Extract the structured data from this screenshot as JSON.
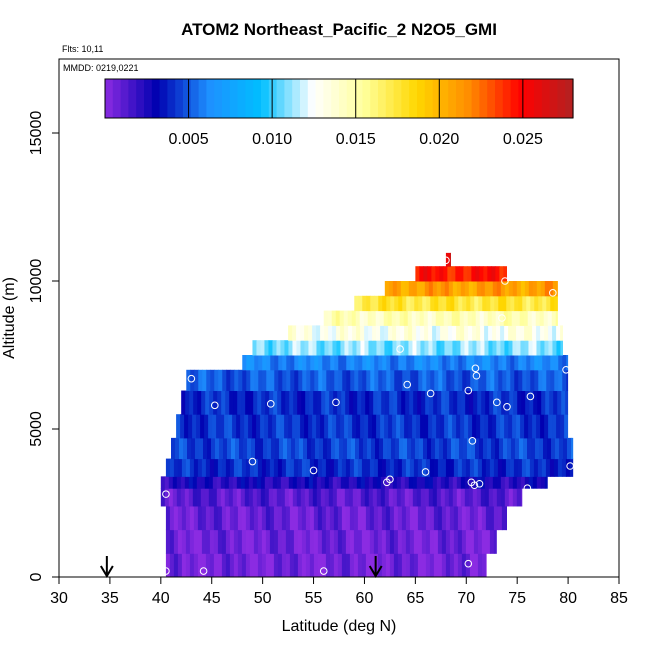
{
  "chart_data": {
    "type": "heatmap",
    "title": "ATOM2 Northeast_Pacific_2 N2O5_GMI",
    "flights_label": "Flts: 10,11",
    "dates_label": "MMDD: 0219,0221",
    "xlabel": "Latitude (deg N)",
    "ylabel": "Altitude (m)",
    "xlim": [
      30,
      85
    ],
    "ylim": [
      0,
      17500
    ],
    "x_ticks": [
      "30",
      "35",
      "40",
      "45",
      "50",
      "55",
      "60",
      "65",
      "70",
      "75",
      "80",
      "85"
    ],
    "y_ticks": [
      "0",
      "5000",
      "10000",
      "15000"
    ],
    "colorbar": {
      "range": [
        0,
        0.028
      ],
      "tick_labels": [
        "0.005",
        "0.010",
        "0.015",
        "0.020",
        "0.025"
      ],
      "tick_values": [
        0.005,
        0.01,
        0.015,
        0.02,
        0.025
      ],
      "colors": [
        "#8b2be2",
        "#0000b0",
        "#1e90ff",
        "#00bfff",
        "#ffffff",
        "#ffff99",
        "#ffd700",
        "#ff8c00",
        "#ff0000",
        "#b22222"
      ]
    },
    "bands": [
      {
        "y0": 0,
        "y1": 800,
        "x0": 40.5,
        "x1": 72,
        "value": 0.0005
      },
      {
        "y0": 800,
        "y1": 1600,
        "x0": 40.5,
        "x1": 73,
        "value": 0.0006
      },
      {
        "y0": 1600,
        "y1": 2400,
        "x0": 40.5,
        "x1": 74,
        "value": 0.0008
      },
      {
        "y0": 2400,
        "y1": 3000,
        "x0": 40,
        "x1": 75.5,
        "value": 0.0012
      },
      {
        "y0": 3000,
        "y1": 3400,
        "x0": 40,
        "x1": 78,
        "value": 0.0025
      },
      {
        "y0": 3400,
        "y1": 4000,
        "x0": 40.5,
        "x1": 80.5,
        "value": 0.004
      },
      {
        "y0": 4000,
        "y1": 4700,
        "x0": 41,
        "x1": 80.5,
        "value": 0.0045
      },
      {
        "y0": 4700,
        "y1": 5500,
        "x0": 41.5,
        "x1": 80,
        "value": 0.0042
      },
      {
        "y0": 5500,
        "y1": 6300,
        "x0": 42,
        "x1": 80,
        "value": 0.004
      },
      {
        "y0": 6300,
        "y1": 7000,
        "x0": 42.5,
        "x1": 80,
        "value": 0.005
      },
      {
        "y0": 7000,
        "y1": 7500,
        "x0": 48,
        "x1": 80,
        "value": 0.006
      },
      {
        "y0": 7500,
        "y1": 8000,
        "x0": 49,
        "x1": 79.5,
        "value": 0.011
      },
      {
        "y0": 8000,
        "y1": 8500,
        "x0": 52.5,
        "x1": 79.5,
        "value": 0.013
      },
      {
        "y0": 8500,
        "y1": 9000,
        "x0": 56,
        "x1": 79,
        "value": 0.0145
      },
      {
        "y0": 9000,
        "y1": 9500,
        "x0": 59,
        "x1": 79,
        "value": 0.0175
      },
      {
        "y0": 9500,
        "y1": 10000,
        "x0": 62,
        "x1": 79,
        "value": 0.021
      },
      {
        "y0": 10000,
        "y1": 10500,
        "x0": 65,
        "x1": 74,
        "value": 0.0245
      },
      {
        "y0": 10500,
        "y1": 10950,
        "x0": 68,
        "x1": 68.5,
        "value": 0.027
      }
    ],
    "points": [
      {
        "x": 40.5,
        "y": 200
      },
      {
        "x": 44.2,
        "y": 200
      },
      {
        "x": 56,
        "y": 200
      },
      {
        "x": 70.2,
        "y": 450
      },
      {
        "x": 40.5,
        "y": 2800
      },
      {
        "x": 62.2,
        "y": 3200
      },
      {
        "x": 62.5,
        "y": 3300
      },
      {
        "x": 70.5,
        "y": 3200
      },
      {
        "x": 70.8,
        "y": 3100
      },
      {
        "x": 71.3,
        "y": 3150
      },
      {
        "x": 76.0,
        "y": 3000
      },
      {
        "x": 49.0,
        "y": 3900
      },
      {
        "x": 55.0,
        "y": 3600
      },
      {
        "x": 66.0,
        "y": 3550
      },
      {
        "x": 80.2,
        "y": 3750
      },
      {
        "x": 70.6,
        "y": 4600
      },
      {
        "x": 45.3,
        "y": 5800
      },
      {
        "x": 50.8,
        "y": 5850
      },
      {
        "x": 57.2,
        "y": 5900
      },
      {
        "x": 73.0,
        "y": 5900
      },
      {
        "x": 74.0,
        "y": 5750
      },
      {
        "x": 66.5,
        "y": 6200
      },
      {
        "x": 70.2,
        "y": 6300
      },
      {
        "x": 76.3,
        "y": 6100
      },
      {
        "x": 43.0,
        "y": 6700
      },
      {
        "x": 64.2,
        "y": 6500
      },
      {
        "x": 71.0,
        "y": 6800
      },
      {
        "x": 70.9,
        "y": 7050
      },
      {
        "x": 79.8,
        "y": 7000
      },
      {
        "x": 63.5,
        "y": 7700
      },
      {
        "x": 73.5,
        "y": 8750
      },
      {
        "x": 73.8,
        "y": 10000
      },
      {
        "x": 78.5,
        "y": 9600
      },
      {
        "x": 68.0,
        "y": 10700
      }
    ],
    "arrows_x": [
      34.7,
      61.1
    ]
  }
}
